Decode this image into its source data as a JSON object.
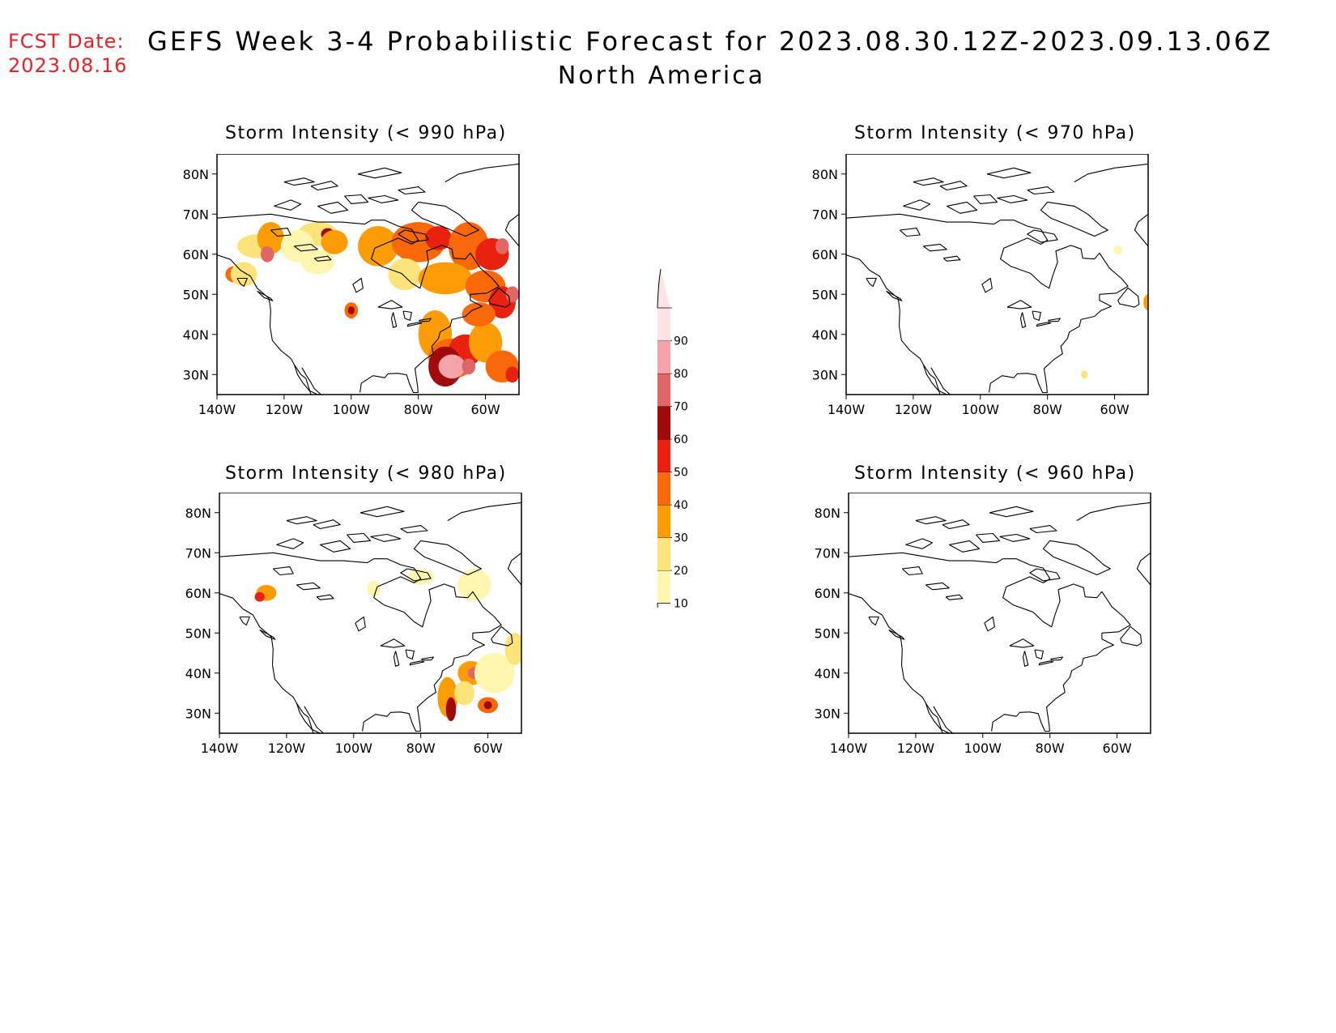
{
  "fcst": {
    "label": "FCST Date:",
    "date": "2023.08.16"
  },
  "title": "GEFS Week 3-4 Probabilistic Forecast for 2023.08.30.12Z-2023.09.13.06Z",
  "region": "North America",
  "axes": {
    "lat_ticks": [
      "80N",
      "70N",
      "60N",
      "50N",
      "40N",
      "30N"
    ],
    "lon_ticks": [
      "140W",
      "120W",
      "100W",
      "80W",
      "60W"
    ]
  },
  "panels": [
    {
      "id": "p990",
      "title": "Storm Intensity (< 990 hPa)"
    },
    {
      "id": "p970",
      "title": "Storm Intensity (< 970 hPa)"
    },
    {
      "id": "p980",
      "title": "Storm Intensity (< 980 hPa)"
    },
    {
      "id": "p960",
      "title": "Storm Intensity (< 960 hPa)"
    }
  ],
  "colorbar": {
    "levels": [
      "10",
      "20",
      "30",
      "40",
      "50",
      "60",
      "70",
      "80",
      "90"
    ],
    "colors": [
      "#fff7b0",
      "#fde47a",
      "#fc9d08",
      "#f96809",
      "#e82110",
      "#a00a0a",
      "#e16666",
      "#f4a3a8",
      "#fde4e6"
    ]
  }
}
